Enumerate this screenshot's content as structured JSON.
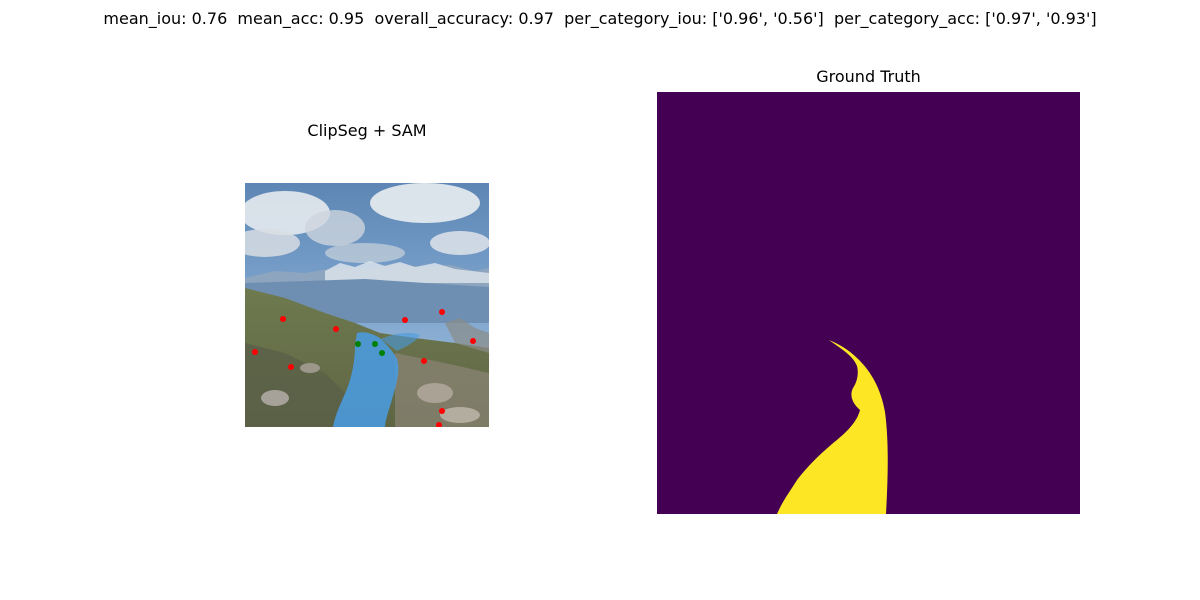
{
  "figure": {
    "suptitle": "mean_iou: 0.76  mean_acc: 0.95  overall_accuracy: 0.97  per_category_iou: ['0.96', '0.56']  per_category_acc: ['0.97', '0.93']"
  },
  "panels": {
    "left": {
      "title": "ClipSeg + SAM"
    },
    "right": {
      "title": "Ground Truth"
    }
  },
  "colors": {
    "mask_background": "#440154",
    "mask_foreground": "#fde725",
    "predicted_overlay": "#4a9be0",
    "negative_point": "#ff0000",
    "positive_point": "#008000"
  }
}
